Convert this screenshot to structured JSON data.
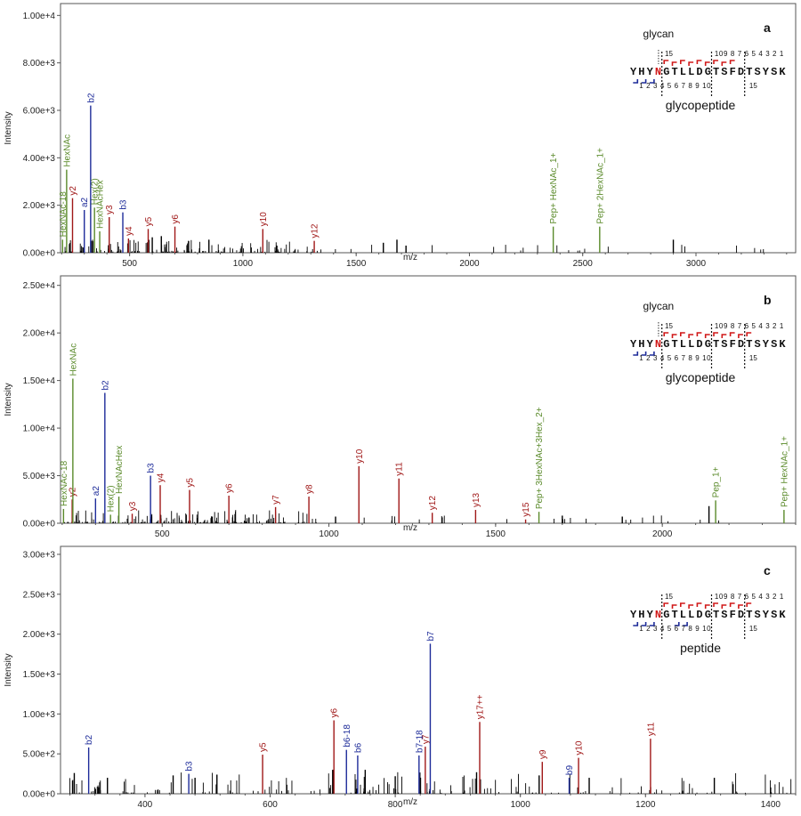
{
  "colors": {
    "noise": "#000000",
    "glycan": "#5a8a2a",
    "b_ion": "#1d2b99",
    "y_ion": "#a01818",
    "axis": "#555555",
    "peptide_n": "#d01818"
  },
  "chart_data": [
    {
      "type": "bar",
      "panel_label": "a",
      "xlabel": "m/z",
      "ylabel": "Intensity",
      "xlim": [
        195,
        3440
      ],
      "ylim": [
        0,
        10500
      ],
      "xticks": [
        500,
        1000,
        1500,
        2000,
        2500,
        3000
      ],
      "yticks": [
        0,
        2000,
        4000,
        6000,
        8000,
        10000
      ],
      "ytick_labels": [
        "0.00e+0",
        "2.00e+3",
        "4.00e+3",
        "6.00e+3",
        "8.00e+3",
        "1.00e+4"
      ],
      "inset": {
        "annotation": "glycan",
        "sequence": "YHYNGTLLDGTSFDTSYSK",
        "glyco_index": 3,
        "upper_numbers": [
          "15",
          "109 8 7 6 5 4 3 2 1"
        ],
        "lower_numbers": [
          "1 2 3 4 5 6 7 8 9 10",
          "15"
        ],
        "caption": "glycopeptide",
        "y_marks": [
          4,
          5,
          6,
          7,
          8,
          9,
          10,
          11,
          12
        ],
        "b_marks": [
          1,
          2,
          3
        ],
        "dividers": [
          4,
          10,
          14
        ]
      },
      "peaks": [
        {
          "mz": 204,
          "intensity": 550,
          "label": "HexNAc-18",
          "cls": "glycan"
        },
        {
          "mz": 222,
          "intensity": 3500,
          "label": "HexNAc",
          "cls": "glycan"
        },
        {
          "mz": 248,
          "intensity": 2300,
          "label": "y2",
          "cls": "y"
        },
        {
          "mz": 300,
          "intensity": 1800,
          "label": "a2",
          "cls": "b"
        },
        {
          "mz": 328,
          "intensity": 6200,
          "label": "b2",
          "cls": "b"
        },
        {
          "mz": 345,
          "intensity": 1900,
          "label": "Hex(2)",
          "cls": "glycan"
        },
        {
          "mz": 368,
          "intensity": 900,
          "label": "HexNAcHex",
          "cls": "glycan"
        },
        {
          "mz": 410,
          "intensity": 1500,
          "label": "y3",
          "cls": "y"
        },
        {
          "mz": 470,
          "intensity": 1700,
          "label": "b3",
          "cls": "b"
        },
        {
          "mz": 495,
          "intensity": 600,
          "label": "y4",
          "cls": "y"
        },
        {
          "mz": 582,
          "intensity": 1000,
          "label": "y5",
          "cls": "y"
        },
        {
          "mz": 700,
          "intensity": 1100,
          "label": "y6",
          "cls": "y"
        },
        {
          "mz": 1088,
          "intensity": 1000,
          "label": "y10",
          "cls": "y"
        },
        {
          "mz": 1315,
          "intensity": 500,
          "label": "y12",
          "cls": "y"
        },
        {
          "mz": 2370,
          "intensity": 1100,
          "label": "Pep+ HexNAc_1+",
          "cls": "glycan"
        },
        {
          "mz": 2575,
          "intensity": 1100,
          "label": "Pep+ 2HexNAc_1+",
          "cls": "glycan"
        },
        {
          "mz": 600,
          "intensity": 650,
          "cls": "noise"
        },
        {
          "mz": 640,
          "intensity": 700,
          "cls": "noise"
        },
        {
          "mz": 760,
          "intensity": 500,
          "cls": "noise"
        },
        {
          "mz": 850,
          "intensity": 550,
          "cls": "noise"
        },
        {
          "mz": 1150,
          "intensity": 300,
          "cls": "noise"
        },
        {
          "mz": 1620,
          "intensity": 420,
          "cls": "noise"
        },
        {
          "mz": 1680,
          "intensity": 550,
          "cls": "noise"
        },
        {
          "mz": 1720,
          "intensity": 300,
          "cls": "noise"
        },
        {
          "mz": 2900,
          "intensity": 550,
          "cls": "noise"
        }
      ]
    },
    {
      "type": "bar",
      "panel_label": "b",
      "xlabel": "m/z",
      "ylabel": "Intensity",
      "xlim": [
        195,
        2400
      ],
      "ylim": [
        0,
        26000
      ],
      "xticks": [
        500,
        1000,
        1500,
        2000
      ],
      "yticks": [
        0,
        5000,
        10000,
        15000,
        20000,
        25000
      ],
      "ytick_labels": [
        "0.00e+0",
        "5.00e+3",
        "1.00e+4",
        "1.50e+4",
        "2.00e+4",
        "2.50e+4"
      ],
      "inset": {
        "annotation": "glycan",
        "sequence": "YHYNGTLLDGTSFDTSYSK",
        "glyco_index": 3,
        "upper_numbers": [
          "15",
          "109 8 7 6 5 4 3 2 1"
        ],
        "lower_numbers": [
          "1 2 3 4 5 6 7 8 9 10",
          "15"
        ],
        "caption": "glycopeptide",
        "y_marks": [
          4,
          5,
          6,
          7,
          8,
          9,
          10,
          11,
          12,
          13,
          14
        ],
        "b_marks": [
          1,
          2,
          3
        ],
        "dividers": [
          4,
          10,
          14
        ]
      },
      "peaks": [
        {
          "mz": 204,
          "intensity": 1500,
          "label": "HexNAc-18",
          "cls": "glycan"
        },
        {
          "mz": 230,
          "intensity": 2500,
          "label": "y2",
          "cls": "y"
        },
        {
          "mz": 232,
          "intensity": 15200,
          "label": "HexNAc",
          "cls": "glycan"
        },
        {
          "mz": 300,
          "intensity": 2600,
          "label": "a2",
          "cls": "b"
        },
        {
          "mz": 328,
          "intensity": 13700,
          "label": "b2",
          "cls": "b"
        },
        {
          "mz": 345,
          "intensity": 900,
          "label": "Hex(2)",
          "cls": "glycan"
        },
        {
          "mz": 370,
          "intensity": 2800,
          "label": "HexNAcHex",
          "cls": "glycan"
        },
        {
          "mz": 410,
          "intensity": 1000,
          "label": "y3",
          "cls": "y"
        },
        {
          "mz": 465,
          "intensity": 5000,
          "label": "b3",
          "cls": "b"
        },
        {
          "mz": 494,
          "intensity": 4000,
          "label": "y4",
          "cls": "y"
        },
        {
          "mz": 582,
          "intensity": 3500,
          "label": "y5",
          "cls": "y"
        },
        {
          "mz": 700,
          "intensity": 2900,
          "label": "y6",
          "cls": "y"
        },
        {
          "mz": 840,
          "intensity": 1700,
          "label": "y7",
          "cls": "y"
        },
        {
          "mz": 940,
          "intensity": 2800,
          "label": "y8",
          "cls": "y"
        },
        {
          "mz": 1090,
          "intensity": 6000,
          "label": "y10",
          "cls": "y"
        },
        {
          "mz": 1210,
          "intensity": 4700,
          "label": "y11",
          "cls": "y"
        },
        {
          "mz": 1310,
          "intensity": 1100,
          "label": "y12",
          "cls": "y"
        },
        {
          "mz": 1440,
          "intensity": 1400,
          "label": "y13",
          "cls": "y"
        },
        {
          "mz": 1590,
          "intensity": 400,
          "label": "y15",
          "cls": "y"
        },
        {
          "mz": 1630,
          "intensity": 1200,
          "label": "Pep+ 3HexNAc+3Hex_2+",
          "cls": "glycan"
        },
        {
          "mz": 2160,
          "intensity": 2400,
          "label": "Pep_1+",
          "cls": "glycan"
        },
        {
          "mz": 2365,
          "intensity": 1400,
          "label": "Pep+ HexNAc_1+",
          "cls": "glycan"
        },
        {
          "mz": 2140,
          "intensity": 1800,
          "cls": "noise"
        },
        {
          "mz": 650,
          "intensity": 700,
          "cls": "noise"
        },
        {
          "mz": 760,
          "intensity": 600,
          "cls": "noise"
        },
        {
          "mz": 1020,
          "intensity": 700,
          "cls": "noise"
        },
        {
          "mz": 1700,
          "intensity": 800,
          "cls": "noise"
        },
        {
          "mz": 1880,
          "intensity": 700,
          "cls": "noise"
        }
      ]
    },
    {
      "type": "bar",
      "panel_label": "c",
      "xlabel": "m/z",
      "ylabel": "Intensity",
      "xlim": [
        265,
        1440
      ],
      "ylim": [
        0,
        3100
      ],
      "xticks": [
        400,
        600,
        800,
        1000,
        1200,
        1400
      ],
      "yticks": [
        0,
        500,
        1000,
        1500,
        2000,
        2500,
        3000
      ],
      "ytick_labels": [
        "0.00e+0",
        "5.00e+2",
        "1.00e+3",
        "1.50e+3",
        "2.00e+3",
        "2.50e+3",
        "3.00e+3"
      ],
      "inset": {
        "annotation": "",
        "sequence": "YHYNGTLLDGTSFDTSYSK",
        "glyco_index": 3,
        "upper_numbers": [
          "15",
          "109 8 7 6 5 4 3 2 1"
        ],
        "lower_numbers": [
          "1 2 3 4 5 6 7 8 9 10",
          "15"
        ],
        "caption": "peptide",
        "y_marks": [
          4,
          5,
          6,
          7,
          8,
          9,
          10,
          11,
          12,
          13,
          14
        ],
        "b_marks": [
          1,
          2,
          3,
          6,
          7
        ],
        "dividers": [
          4,
          10,
          14
        ]
      },
      "peaks": [
        {
          "mz": 310,
          "intensity": 580,
          "label": "b2",
          "cls": "b"
        },
        {
          "mz": 470,
          "intensity": 250,
          "label": "b3",
          "cls": "b"
        },
        {
          "mz": 588,
          "intensity": 490,
          "label": "y5",
          "cls": "y"
        },
        {
          "mz": 702,
          "intensity": 920,
          "label": "y6",
          "cls": "y"
        },
        {
          "mz": 722,
          "intensity": 550,
          "label": "b6-18",
          "cls": "b"
        },
        {
          "mz": 740,
          "intensity": 480,
          "label": "b6",
          "cls": "b"
        },
        {
          "mz": 838,
          "intensity": 480,
          "label": "b7-18",
          "cls": "b"
        },
        {
          "mz": 848,
          "intensity": 590,
          "label": "y7",
          "cls": "y"
        },
        {
          "mz": 856,
          "intensity": 1880,
          "label": "b7",
          "cls": "b"
        },
        {
          "mz": 935,
          "intensity": 900,
          "label": "y17++",
          "cls": "y"
        },
        {
          "mz": 1035,
          "intensity": 400,
          "label": "y9",
          "cls": "y"
        },
        {
          "mz": 1078,
          "intensity": 200,
          "label": "b9",
          "cls": "b"
        },
        {
          "mz": 1093,
          "intensity": 450,
          "label": "y10",
          "cls": "y"
        },
        {
          "mz": 1208,
          "intensity": 690,
          "label": "y11",
          "cls": "y"
        },
        {
          "mz": 287,
          "intensity": 260,
          "cls": "noise"
        },
        {
          "mz": 340,
          "intensity": 200,
          "cls": "noise"
        },
        {
          "mz": 445,
          "intensity": 230,
          "cls": "noise"
        },
        {
          "mz": 480,
          "intensity": 200,
          "cls": "noise"
        },
        {
          "mz": 515,
          "intensity": 240,
          "cls": "noise"
        },
        {
          "mz": 700,
          "intensity": 300,
          "cls": "noise"
        },
        {
          "mz": 752,
          "intensity": 300,
          "cls": "noise"
        },
        {
          "mz": 800,
          "intensity": 220,
          "cls": "noise"
        },
        {
          "mz": 930,
          "intensity": 270,
          "cls": "noise"
        },
        {
          "mz": 1030,
          "intensity": 230,
          "cls": "noise"
        },
        {
          "mz": 1110,
          "intensity": 200,
          "cls": "noise"
        },
        {
          "mz": 1310,
          "intensity": 200,
          "cls": "noise"
        },
        {
          "mz": 1340,
          "intensity": 120,
          "cls": "noise"
        },
        {
          "mz": 1400,
          "intensity": 80,
          "cls": "noise"
        }
      ]
    }
  ]
}
